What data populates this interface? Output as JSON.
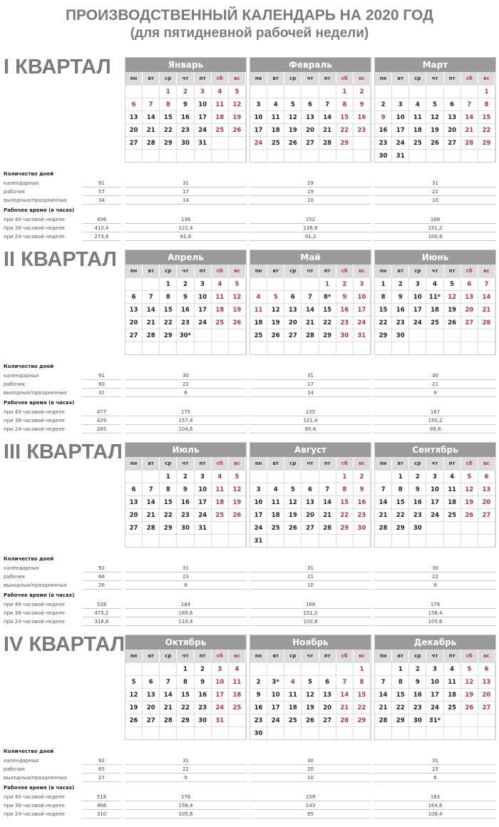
{
  "title": "ПРОИЗВОДСТВЕННЫЙ КАЛЕНДАРЬ НА 2020 ГОД",
  "subtitle": "(для пятидневной рабочей недели)",
  "year": 2020,
  "colors": {
    "header": "#9a9a9a",
    "weekday_row": "#dcdcdc",
    "holiday": "#b8333f",
    "title": "#7a7a7a"
  },
  "weekdays": [
    "пн",
    "вт",
    "ср",
    "чт",
    "пт",
    "сб",
    "вс"
  ],
  "stats_labels": {
    "days_heading": "Количество дней",
    "calendar": "календарных",
    "working": "рабочих",
    "off": "выходных/праздничных",
    "hours_heading": "Рабочее время (в часах)",
    "h40": "при 40-часовой неделе",
    "h36": "при 36-часовой неделе",
    "h24": "при 24-часовой неделе"
  },
  "quarters": [
    {
      "label": "I КВАРТАЛ",
      "totals": [
        "91",
        "57",
        "34",
        "456",
        "410,4",
        "273,6"
      ],
      "months": [
        {
          "name": "Январь",
          "num": 1,
          "holidays": [
            1,
            2,
            3,
            6,
            7,
            8
          ],
          "short": [],
          "stats": [
            "31",
            "17",
            "14",
            "136",
            "122,4",
            "81,6"
          ]
        },
        {
          "name": "Февраль",
          "num": 2,
          "holidays": [
            24
          ],
          "short": [],
          "stats": [
            "29",
            "19",
            "10",
            "152",
            "136,8",
            "91,2"
          ]
        },
        {
          "name": "Март",
          "num": 3,
          "holidays": [
            9
          ],
          "short": [],
          "stats": [
            "31",
            "21",
            "10",
            "168",
            "151,2",
            "100,8"
          ]
        }
      ]
    },
    {
      "label": "II КВАРТАЛ",
      "totals": [
        "91",
        "60",
        "31",
        "477",
        "429",
        "285"
      ],
      "months": [
        {
          "name": "Апрель",
          "num": 4,
          "holidays": [],
          "short": [
            30
          ],
          "stats": [
            "30",
            "22",
            "8",
            "175",
            "157,4",
            "104,6"
          ]
        },
        {
          "name": "Май",
          "num": 5,
          "holidays": [
            1,
            4,
            5,
            11
          ],
          "short": [
            8
          ],
          "stats": [
            "31",
            "17",
            "14",
            "135",
            "121,4",
            "80,6"
          ]
        },
        {
          "name": "Июнь",
          "num": 6,
          "holidays": [
            12
          ],
          "short": [
            11
          ],
          "stats": [
            "30",
            "21",
            "9",
            "167",
            "150,2",
            "99,8"
          ]
        }
      ]
    },
    {
      "label": "III КВАРТАЛ",
      "totals": [
        "92",
        "66",
        "26",
        "528",
        "475,2",
        "316,8"
      ],
      "months": [
        {
          "name": "Июль",
          "num": 7,
          "holidays": [],
          "short": [],
          "stats": [
            "31",
            "23",
            "8",
            "184",
            "165,6",
            "110,4"
          ]
        },
        {
          "name": "Август",
          "num": 8,
          "holidays": [],
          "short": [],
          "stats": [
            "31",
            "21",
            "10",
            "168",
            "151,2",
            "100,8"
          ]
        },
        {
          "name": "Сентябрь",
          "num": 9,
          "holidays": [],
          "short": [],
          "stats": [
            "30",
            "22",
            "8",
            "176",
            "158,4",
            "105,6"
          ]
        }
      ]
    },
    {
      "label": "IV КВАРТАЛ",
      "totals": [
        "92",
        "65",
        "27",
        "518",
        "466",
        "310"
      ],
      "months": [
        {
          "name": "Октябрь",
          "num": 10,
          "holidays": [],
          "short": [],
          "stats": [
            "31",
            "22",
            "9",
            "176",
            "158,4",
            "105,6"
          ]
        },
        {
          "name": "Ноябрь",
          "num": 11,
          "holidays": [
            4
          ],
          "short": [
            3
          ],
          "stats": [
            "30",
            "20",
            "10",
            "159",
            "143",
            "95"
          ]
        },
        {
          "name": "Декабрь",
          "num": 12,
          "holidays": [],
          "short": [
            31
          ],
          "stats": [
            "31",
            "23",
            "8",
            "183",
            "164,6",
            "109,4"
          ]
        }
      ]
    }
  ]
}
